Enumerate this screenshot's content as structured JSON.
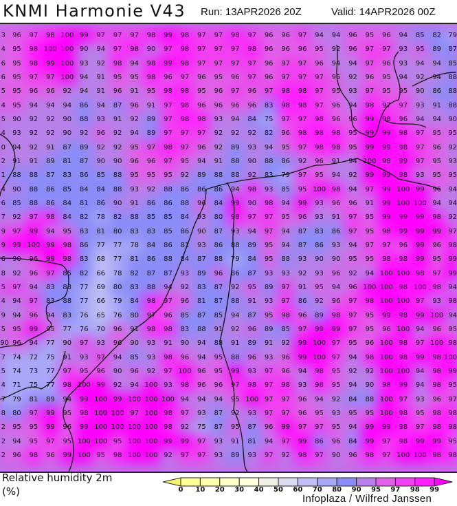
{
  "header": {
    "title": "KNMI Harmonie V43",
    "run": "Run: 13APR2026 20Z",
    "valid": "Valid: 14APR2026 00Z"
  },
  "parameter": {
    "name": "Relative humidity 2m",
    "unit": "(%)"
  },
  "credit": "Infoplaza / Wilfred Janssen",
  "legend": {
    "labels": [
      "0",
      "10",
      "20",
      "30",
      "40",
      "50",
      "60",
      "70",
      "80",
      "90",
      "95",
      "97",
      "98",
      "99"
    ],
    "thresholds": [
      0,
      10,
      20,
      30,
      40,
      50,
      60,
      70,
      80,
      90,
      95,
      97,
      98,
      99
    ],
    "colors": [
      "#f4f470",
      "#ffff99",
      "#ffffb0",
      "#ffffc8",
      "#ffffdc",
      "#f0f0e4",
      "#dcdcf0",
      "#c0c0f4",
      "#a8a8f6",
      "#8c8cf8",
      "#b880e8",
      "#e060e8",
      "#f040f0",
      "#ff20ff",
      "#ff00ff"
    ]
  },
  "grid": [
    [
      "3",
      "96",
      "97",
      "98",
      "100",
      "99",
      "97",
      "97",
      "97",
      "98",
      "99",
      "98",
      "97",
      "97",
      "98",
      "97",
      "96",
      "96",
      "97",
      "94",
      "94",
      "96",
      "95",
      "96",
      "94",
      "85",
      "82",
      "79"
    ],
    [
      "4",
      "95",
      "98",
      "100",
      "100",
      "90",
      "94",
      "97",
      "98",
      "90",
      "97",
      "98",
      "97",
      "97",
      "97",
      "98",
      "96",
      "96",
      "96",
      "95",
      "92",
      "96",
      "97",
      "97",
      "93",
      "95",
      "89",
      "87"
    ],
    [
      "6",
      "95",
      "98",
      "99",
      "100",
      "93",
      "92",
      "98",
      "94",
      "98",
      "99",
      "98",
      "97",
      "97",
      "97",
      "97",
      "96",
      "97",
      "97",
      "96",
      "94",
      "94",
      "97",
      "96",
      "93",
      "94",
      "94",
      "85"
    ],
    [
      "6",
      "95",
      "97",
      "97",
      "100",
      "94",
      "91",
      "95",
      "95",
      "98",
      "96",
      "97",
      "96",
      "95",
      "96",
      "97",
      "96",
      "97",
      "97",
      "97",
      "95",
      "92",
      "96",
      "95",
      "94",
      "92",
      "94",
      "88"
    ],
    [
      "5",
      "95",
      "96",
      "96",
      "92",
      "94",
      "91",
      "96",
      "91",
      "95",
      "98",
      "98",
      "95",
      "96",
      "97",
      "96",
      "97",
      "98",
      "98",
      "97",
      "95",
      "93",
      "97",
      "95",
      "95",
      "90",
      "86",
      "88"
    ],
    [
      "4",
      "95",
      "94",
      "94",
      "94",
      "86",
      "94",
      "87",
      "96",
      "91",
      "97",
      "98",
      "96",
      "96",
      "96",
      "96",
      "83",
      "98",
      "98",
      "97",
      "96",
      "94",
      "98",
      "97",
      "97",
      "93",
      "91",
      "88"
    ],
    [
      "5",
      "90",
      "92",
      "92",
      "90",
      "88",
      "93",
      "91",
      "92",
      "89",
      "97",
      "98",
      "98",
      "93",
      "94",
      "84",
      "75",
      "97",
      "97",
      "98",
      "96",
      "96",
      "99",
      "98",
      "96",
      "94",
      "94",
      "90"
    ],
    [
      "4",
      "93",
      "92",
      "92",
      "90",
      "92",
      "96",
      "92",
      "94",
      "89",
      "97",
      "97",
      "97",
      "92",
      "92",
      "92",
      "82",
      "96",
      "98",
      "98",
      "98",
      "95",
      "99",
      "99",
      "98",
      "97",
      "95",
      "95"
    ],
    [
      "0",
      "94",
      "92",
      "91",
      "87",
      "89",
      "92",
      "92",
      "95",
      "97",
      "98",
      "97",
      "96",
      "92",
      "89",
      "93",
      "94",
      "95",
      "97",
      "98",
      "98",
      "95",
      "99",
      "99",
      "98",
      "97",
      "96",
      "92"
    ],
    [
      "2",
      "91",
      "91",
      "89",
      "81",
      "87",
      "90",
      "90",
      "96",
      "96",
      "97",
      "95",
      "94",
      "91",
      "88",
      "90",
      "88",
      "86",
      "92",
      "96",
      "91",
      "94",
      "100",
      "98",
      "99",
      "97",
      "95",
      "93"
    ],
    [
      "1",
      "88",
      "88",
      "87",
      "83",
      "86",
      "85",
      "88",
      "95",
      "95",
      "95",
      "92",
      "89",
      "88",
      "88",
      "92",
      "83",
      "79",
      "97",
      "95",
      "94",
      "92",
      "99",
      "99",
      "98",
      "93",
      "95",
      "95"
    ],
    [
      "4",
      "90",
      "88",
      "86",
      "85",
      "84",
      "84",
      "88",
      "93",
      "92",
      "88",
      "86",
      "86",
      "86",
      "94",
      "98",
      "93",
      "85",
      "95",
      "100",
      "98",
      "94",
      "97",
      "99",
      "100",
      "99",
      "96",
      "94"
    ],
    [
      "6",
      "85",
      "88",
      "86",
      "84",
      "81",
      "86",
      "90",
      "91",
      "86",
      "86",
      "88",
      "96",
      "84",
      "99",
      "90",
      "98",
      "94",
      "99",
      "93",
      "96",
      "96",
      "91",
      "99",
      "100",
      "100",
      "94",
      "94"
    ],
    [
      "7",
      "92",
      "97",
      "98",
      "84",
      "82",
      "78",
      "82",
      "88",
      "85",
      "85",
      "84",
      "93",
      "80",
      "98",
      "97",
      "97",
      "95",
      "96",
      "93",
      "91",
      "97",
      "95",
      "99",
      "99",
      "99",
      "98",
      "92"
    ],
    [
      "9",
      "97",
      "99",
      "94",
      "95",
      "83",
      "81",
      "80",
      "83",
      "83",
      "85",
      "86",
      "90",
      "87",
      "93",
      "94",
      "97",
      "94",
      "87",
      "83",
      "86",
      "97",
      "95",
      "98",
      "99",
      "99",
      "99",
      "97"
    ],
    [
      "9",
      "99",
      "100",
      "99",
      "98",
      "86",
      "77",
      "77",
      "78",
      "84",
      "86",
      "81",
      "93",
      "86",
      "88",
      "89",
      "95",
      "94",
      "87",
      "86",
      "93",
      "94",
      "97",
      "97",
      "96",
      "99",
      "96",
      "98"
    ],
    [
      "6",
      "90",
      "96",
      "99",
      "98",
      "83",
      "68",
      "77",
      "81",
      "86",
      "88",
      "84",
      "87",
      "88",
      "79",
      "84",
      "95",
      "88",
      "93",
      "90",
      "90",
      "95",
      "95",
      "98",
      "98",
      "99",
      "95",
      "99"
    ],
    [
      "8",
      "92",
      "96",
      "97",
      "85",
      "82",
      "66",
      "78",
      "82",
      "87",
      "87",
      "93",
      "89",
      "96",
      "86",
      "87",
      "93",
      "93",
      "92",
      "93",
      "96",
      "92",
      "94",
      "100",
      "100",
      "98",
      "97",
      "99"
    ],
    [
      "5",
      "97",
      "94",
      "83",
      "83",
      "77",
      "69",
      "80",
      "83",
      "88",
      "94",
      "92",
      "83",
      "87",
      "92",
      "95",
      "89",
      "97",
      "91",
      "95",
      "94",
      "96",
      "100",
      "100",
      "98",
      "100",
      "98",
      "94"
    ],
    [
      "4",
      "94",
      "97",
      "83",
      "88",
      "77",
      "66",
      "79",
      "84",
      "98",
      "97",
      "96",
      "81",
      "87",
      "88",
      "91",
      "93",
      "97",
      "86",
      "92",
      "96",
      "97",
      "98",
      "100",
      "100",
      "97",
      "93",
      "98"
    ],
    [
      "9",
      "94",
      "96",
      "94",
      "83",
      "76",
      "65",
      "76",
      "80",
      "97",
      "96",
      "85",
      "87",
      "85",
      "94",
      "87",
      "95",
      "98",
      "96",
      "89",
      "98",
      "97",
      "95",
      "99",
      "98",
      "99",
      "100",
      "94"
    ],
    [
      "5",
      "95",
      "99",
      "95",
      "77",
      "76",
      "70",
      "96",
      "91",
      "98",
      "98",
      "83",
      "88",
      "91",
      "92",
      "96",
      "89",
      "85",
      "97",
      "99",
      "99",
      "97",
      "95",
      "96",
      "100",
      "94",
      "96",
      "95"
    ],
    [
      "90",
      "96",
      "94",
      "77",
      "90",
      "97",
      "93",
      "96",
      "90",
      "93",
      "91",
      "90",
      "94",
      "88",
      "91",
      "89",
      "91",
      "92",
      "99",
      "100",
      "97",
      "95",
      "96",
      "100",
      "98",
      "97",
      "100",
      "98"
    ],
    [
      "7",
      "74",
      "72",
      "75",
      "91",
      "93",
      "97",
      "94",
      "85",
      "93",
      "98",
      "96",
      "94",
      "95",
      "88",
      "96",
      "93",
      "96",
      "99",
      "100",
      "97",
      "94",
      "98",
      "100",
      "98",
      "99",
      "98",
      "100"
    ],
    [
      "5",
      "74",
      "73",
      "77",
      "97",
      "95",
      "96",
      "90",
      "96",
      "92",
      "97",
      "100",
      "96",
      "95",
      "99",
      "93",
      "97",
      "96",
      "94",
      "98",
      "95",
      "92",
      "92",
      "100",
      "100",
      "94",
      "98",
      "99"
    ],
    [
      "4",
      "71",
      "75",
      "77",
      "98",
      "100",
      "99",
      "92",
      "94",
      "100",
      "93",
      "98",
      "96",
      "96",
      "97",
      "98",
      "97",
      "98",
      "93",
      "98",
      "95",
      "94",
      "90",
      "98",
      "99",
      "94",
      "98",
      "95"
    ],
    [
      "7",
      "79",
      "81",
      "89",
      "94",
      "99",
      "100",
      "99",
      "100",
      "100",
      "100",
      "94",
      "94",
      "94",
      "95",
      "100",
      "97",
      "97",
      "96",
      "94",
      "92",
      "84",
      "88",
      "100",
      "97",
      "93",
      "96",
      "97"
    ],
    [
      "8",
      "80",
      "97",
      "99",
      "95",
      "98",
      "100",
      "100",
      "97",
      "100",
      "98",
      "97",
      "93",
      "87",
      "92",
      "93",
      "97",
      "97",
      "96",
      "95",
      "93",
      "95",
      "95",
      "100",
      "98",
      "95",
      "98",
      "98"
    ],
    [
      "2",
      "95",
      "95",
      "99",
      "96",
      "99",
      "100",
      "100",
      "100",
      "100",
      "98",
      "92",
      "75",
      "87",
      "95",
      "87",
      "96",
      "99",
      "97",
      "97",
      "95",
      "94",
      "99",
      "99",
      "98",
      "97",
      "98",
      "98"
    ],
    [
      "2",
      "94",
      "95",
      "97",
      "95",
      "100",
      "100",
      "95",
      "100",
      "100",
      "99",
      "99",
      "97",
      "93",
      "91",
      "81",
      "94",
      "97",
      "99",
      "86",
      "96",
      "84",
      "99",
      "97",
      "98",
      "99",
      "99",
      "95"
    ],
    [
      "2",
      "96",
      "98",
      "96",
      "99",
      "100",
      "95",
      "98",
      "100",
      "100",
      "92",
      "97",
      "97",
      "93",
      "89",
      "93",
      "97",
      "92",
      "98",
      "97",
      "90",
      "96",
      "98",
      "97",
      "100",
      "100",
      "98",
      "98"
    ]
  ]
}
